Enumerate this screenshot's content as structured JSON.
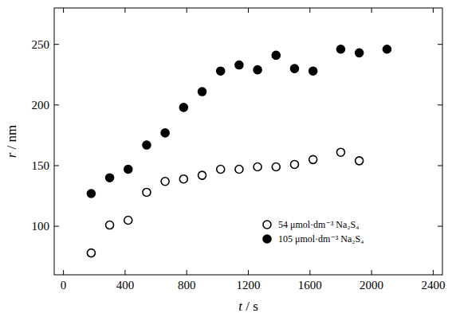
{
  "chart_data": {
    "type": "scatter",
    "x_label": "t / s",
    "y_label": "r / nm",
    "xlim": [
      -60,
      2460
    ],
    "ylim": [
      60,
      280
    ],
    "xticks": [
      0,
      400,
      800,
      1200,
      1600,
      2000,
      2400
    ],
    "yticks": [
      100,
      150,
      200,
      250
    ],
    "grid": false,
    "legend": "lower right",
    "series": [
      {
        "name": "54 μmol·dm⁻³ Na₂S₄",
        "color": "#000000",
        "marker": "open-circle",
        "x": [
          180,
          300,
          420,
          540,
          660,
          780,
          900,
          1020,
          1140,
          1260,
          1380,
          1500,
          1620,
          1800,
          1920
        ],
        "values": [
          78,
          101,
          105,
          128,
          137,
          139,
          142,
          147,
          147,
          149,
          149,
          151,
          155,
          161,
          154
        ]
      },
      {
        "name": "105 μmol·dm⁻³ Na₂S₄",
        "color": "#000000",
        "marker": "filled-circle",
        "x": [
          180,
          300,
          420,
          540,
          660,
          780,
          900,
          1020,
          1140,
          1260,
          1380,
          1500,
          1620,
          1800,
          1920,
          2100
        ],
        "values": [
          127,
          140,
          147,
          167,
          177,
          198,
          211,
          228,
          233,
          229,
          241,
          230,
          228,
          246,
          243,
          246
        ]
      }
    ]
  }
}
